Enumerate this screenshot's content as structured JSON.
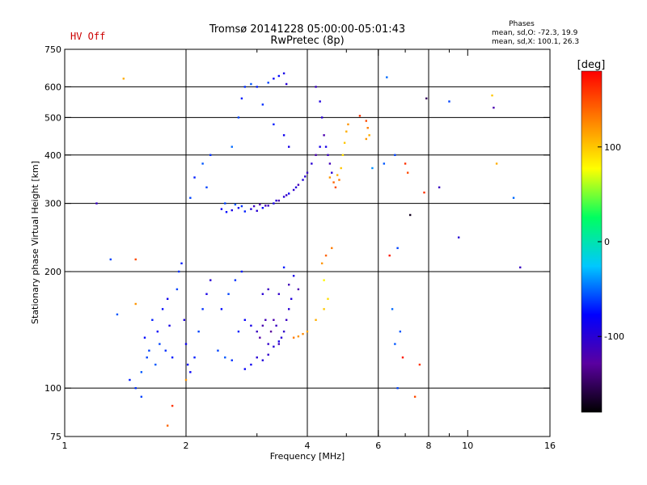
{
  "status_label": "HV Off",
  "chart_data": {
    "type": "scatter",
    "title": "Tromsø 20141228 05:00:00-05:01:43",
    "subtitle": "RwPretec (8p)",
    "xlabel": "Frequency [MHz]",
    "ylabel": "Stationary phase Virtual Height [km]",
    "x_scale": "log",
    "y_scale": "log",
    "xlim": [
      1,
      16
    ],
    "ylim": [
      75,
      750
    ],
    "x_ticks": [
      1,
      2,
      4,
      6,
      8,
      10,
      16
    ],
    "x_tick_labels": [
      "1",
      "2",
      "4",
      "6",
      "8",
      "10",
      "16"
    ],
    "x_minor_ticks": [
      3,
      5,
      7,
      9
    ],
    "y_ticks": [
      75,
      100,
      200,
      300,
      400,
      500,
      600,
      750
    ],
    "y_tick_labels": [
      "75",
      "100",
      "200",
      "300",
      "400",
      "500",
      "600",
      "750"
    ],
    "grid_x": [
      2,
      4,
      6,
      8
    ],
    "grid_y": [
      100,
      200,
      300,
      400,
      500,
      600
    ],
    "grid": true,
    "color_scale": {
      "label": "[deg]",
      "min": -180,
      "max": 180,
      "ticks": [
        100,
        0,
        -100
      ],
      "tick_labels": [
        "100",
        "0",
        "-100"
      ],
      "stops": [
        "#000000",
        "#5a00a0",
        "#0000ff",
        "#00c8ff",
        "#00ff60",
        "#ffff00",
        "#ff8000",
        "#ff0000"
      ]
    },
    "stats_title": "Phases",
    "stats": [
      "mean, sd,O: -72.3, 19.9",
      "mean, sd,X: 100.1, 26.3"
    ],
    "series": [
      {
        "points": [
          [
            2.45,
            290,
            -80
          ],
          [
            2.52,
            285,
            -75
          ],
          [
            2.6,
            288,
            -90
          ],
          [
            2.7,
            292,
            -85
          ],
          [
            2.8,
            286,
            -70
          ],
          [
            2.9,
            290,
            -95
          ],
          [
            3.0,
            287,
            -100
          ],
          [
            3.1,
            292,
            -80
          ],
          [
            3.2,
            296,
            -110
          ],
          [
            3.3,
            300,
            -90
          ],
          [
            3.4,
            305,
            -120
          ],
          [
            3.5,
            312,
            -100
          ],
          [
            3.6,
            318,
            -85
          ],
          [
            3.7,
            325,
            -105
          ],
          [
            3.8,
            335,
            -115
          ],
          [
            3.9,
            345,
            -95
          ],
          [
            4.0,
            360,
            -110
          ],
          [
            4.1,
            380,
            -100
          ],
          [
            4.2,
            400,
            -120
          ],
          [
            4.3,
            420,
            -90
          ],
          [
            2.5,
            300,
            -60
          ],
          [
            2.65,
            298,
            -55
          ],
          [
            2.75,
            295,
            -65
          ],
          [
            2.95,
            295,
            -110
          ],
          [
            3.05,
            298,
            -120
          ],
          [
            3.15,
            296,
            -115
          ],
          [
            3.35,
            305,
            -100
          ],
          [
            3.55,
            315,
            -110
          ],
          [
            3.75,
            330,
            -95
          ],
          [
            3.95,
            352,
            -100
          ],
          [
            2.05,
            310,
            -60
          ],
          [
            2.1,
            350,
            -70
          ],
          [
            2.2,
            380,
            -55
          ],
          [
            2.3,
            400,
            -65
          ],
          [
            2.25,
            330,
            -60
          ],
          [
            2.6,
            420,
            -50
          ],
          [
            2.7,
            500,
            -60
          ],
          [
            2.75,
            560,
            -70
          ],
          [
            2.8,
            600,
            -65
          ],
          [
            2.9,
            610,
            -55
          ],
          [
            3.0,
            600,
            -70
          ],
          [
            3.2,
            615,
            -60
          ],
          [
            3.3,
            630,
            -80
          ],
          [
            3.4,
            640,
            -75
          ],
          [
            3.5,
            650,
            -90
          ],
          [
            3.55,
            610,
            -100
          ],
          [
            3.1,
            540,
            -65
          ],
          [
            3.3,
            480,
            -70
          ],
          [
            3.5,
            450,
            -85
          ],
          [
            3.6,
            420,
            -90
          ],
          [
            4.2,
            600,
            -110
          ],
          [
            4.3,
            550,
            -95
          ],
          [
            4.35,
            500,
            -100
          ],
          [
            4.4,
            450,
            -120
          ],
          [
            4.45,
            420,
            -90
          ],
          [
            4.5,
            400,
            -110
          ],
          [
            4.55,
            380,
            -115
          ],
          [
            4.6,
            360,
            -100
          ],
          [
            4.55,
            350,
            120
          ],
          [
            4.65,
            340,
            140
          ],
          [
            4.75,
            355,
            110
          ],
          [
            4.85,
            370,
            100
          ],
          [
            4.9,
            400,
            90
          ],
          [
            4.95,
            430,
            100
          ],
          [
            5.0,
            460,
            110
          ],
          [
            5.05,
            480,
            120
          ],
          [
            4.7,
            330,
            150
          ],
          [
            4.8,
            345,
            130
          ],
          [
            5.6,
            490,
            150
          ],
          [
            5.65,
            470,
            130
          ],
          [
            5.7,
            450,
            110
          ],
          [
            5.6,
            440,
            120
          ],
          [
            1.65,
            150,
            -70
          ],
          [
            1.7,
            140,
            -80
          ],
          [
            1.72,
            130,
            -60
          ],
          [
            1.75,
            160,
            -75
          ],
          [
            1.8,
            170,
            -85
          ],
          [
            1.82,
            145,
            -90
          ],
          [
            1.85,
            120,
            -70
          ],
          [
            1.9,
            180,
            -60
          ],
          [
            1.92,
            200,
            -65
          ],
          [
            1.95,
            210,
            -70
          ],
          [
            1.98,
            150,
            -95
          ],
          [
            2.0,
            130,
            -85
          ],
          [
            2.02,
            115,
            -75
          ],
          [
            2.05,
            110,
            -80
          ],
          [
            2.1,
            120,
            -70
          ],
          [
            2.15,
            140,
            -60
          ],
          [
            2.2,
            160,
            -65
          ],
          [
            2.25,
            175,
            -90
          ],
          [
            2.3,
            190,
            -100
          ],
          [
            1.6,
            120,
            -60
          ],
          [
            1.55,
            110,
            -55
          ],
          [
            1.5,
            100,
            -65
          ],
          [
            1.45,
            105,
            -70
          ],
          [
            1.58,
            135,
            -75
          ],
          [
            1.62,
            125,
            -60
          ],
          [
            1.68,
            115,
            -55
          ],
          [
            1.78,
            125,
            -65
          ],
          [
            2.4,
            125,
            -60
          ],
          [
            2.5,
            120,
            -55
          ],
          [
            2.6,
            118,
            -65
          ],
          [
            2.7,
            140,
            -70
          ],
          [
            2.8,
            150,
            -80
          ],
          [
            2.9,
            145,
            -90
          ],
          [
            2.45,
            160,
            -75
          ],
          [
            2.55,
            175,
            -60
          ],
          [
            2.65,
            190,
            -65
          ],
          [
            2.75,
            200,
            -70
          ],
          [
            3.0,
            140,
            -110
          ],
          [
            3.05,
            135,
            -125
          ],
          [
            3.1,
            145,
            -120
          ],
          [
            3.15,
            150,
            -115
          ],
          [
            3.2,
            130,
            -105
          ],
          [
            3.25,
            140,
            -130
          ],
          [
            3.3,
            150,
            -120
          ],
          [
            3.35,
            145,
            -110
          ],
          [
            3.4,
            130,
            -115
          ],
          [
            3.45,
            135,
            -100
          ],
          [
            3.5,
            140,
            -105
          ],
          [
            3.55,
            150,
            -110
          ],
          [
            3.6,
            160,
            -100
          ],
          [
            3.65,
            170,
            -95
          ],
          [
            3.0,
            120,
            -100
          ],
          [
            3.1,
            118,
            -95
          ],
          [
            3.2,
            122,
            -105
          ],
          [
            3.3,
            128,
            -100
          ],
          [
            3.4,
            132,
            -90
          ],
          [
            2.9,
            115,
            -85
          ],
          [
            2.8,
            112,
            -80
          ],
          [
            3.2,
            180,
            -110
          ],
          [
            3.4,
            175,
            -105
          ],
          [
            3.6,
            185,
            -115
          ],
          [
            3.8,
            180,
            -120
          ],
          [
            3.1,
            175,
            -100
          ],
          [
            3.5,
            205,
            -70
          ],
          [
            3.7,
            195,
            -90
          ],
          [
            3.7,
            135,
            130
          ],
          [
            3.8,
            136,
            120
          ],
          [
            3.9,
            138,
            125
          ],
          [
            4.0,
            140,
            115
          ],
          [
            4.2,
            150,
            110
          ],
          [
            4.4,
            160,
            100
          ],
          [
            4.5,
            170,
            90
          ],
          [
            4.4,
            190,
            80
          ],
          [
            4.35,
            210,
            120
          ],
          [
            4.45,
            220,
            140
          ],
          [
            4.6,
            230,
            130
          ],
          [
            1.2,
            300,
            -110
          ],
          [
            1.3,
            215,
            -60
          ],
          [
            1.35,
            155,
            -55
          ],
          [
            1.5,
            215,
            150
          ],
          [
            1.55,
            95,
            -60
          ],
          [
            1.4,
            630,
            110
          ],
          [
            1.5,
            165,
            120
          ],
          [
            1.85,
            90,
            160
          ],
          [
            1.8,
            80,
            140
          ],
          [
            2.0,
            105,
            120
          ],
          [
            5.4,
            505,
            160
          ],
          [
            5.8,
            370,
            -40
          ],
          [
            6.3,
            635,
            -50
          ],
          [
            6.5,
            160,
            -50
          ],
          [
            6.6,
            130,
            -55
          ],
          [
            6.7,
            100,
            -60
          ],
          [
            6.8,
            140,
            -55
          ],
          [
            6.9,
            120,
            170
          ],
          [
            7.1,
            360,
            150
          ],
          [
            7.2,
            280,
            -170
          ],
          [
            7.4,
            95,
            150
          ],
          [
            7.8,
            320,
            160
          ],
          [
            7.9,
            560,
            -150
          ],
          [
            8.5,
            330,
            -110
          ],
          [
            9.0,
            550,
            -60
          ],
          [
            9.5,
            245,
            -100
          ],
          [
            11.5,
            570,
            100
          ],
          [
            11.6,
            530,
            -120
          ],
          [
            11.8,
            380,
            110
          ],
          [
            13.0,
            310,
            -50
          ],
          [
            13.5,
            205,
            -110
          ],
          [
            6.4,
            220,
            170
          ],
          [
            6.2,
            380,
            -55
          ],
          [
            7.0,
            380,
            160
          ],
          [
            7.6,
            115,
            160
          ],
          [
            6.6,
            400,
            -60
          ],
          [
            6.7,
            230,
            -60
          ]
        ]
      }
    ]
  }
}
